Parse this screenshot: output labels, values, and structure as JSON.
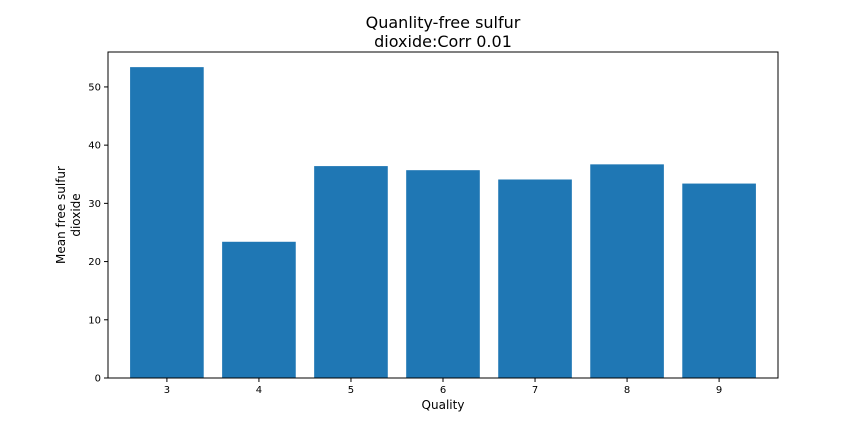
{
  "chart_data": {
    "type": "bar",
    "title_lines": [
      "Quanlity-free sulfur",
      "dioxide:Corr 0.01"
    ],
    "xlabel": "Quality",
    "ylabel_lines": [
      "Mean free sulfur",
      "dioxide"
    ],
    "categories": [
      "3",
      "4",
      "5",
      "6",
      "7",
      "8",
      "9"
    ],
    "values": [
      53.4,
      23.4,
      36.4,
      35.7,
      34.1,
      36.7,
      33.4
    ],
    "ylim": [
      0,
      56
    ],
    "yticks": [
      0,
      10,
      20,
      30,
      40,
      50
    ],
    "bar_color": "#1f77b4",
    "grid": false,
    "legend": "none"
  }
}
